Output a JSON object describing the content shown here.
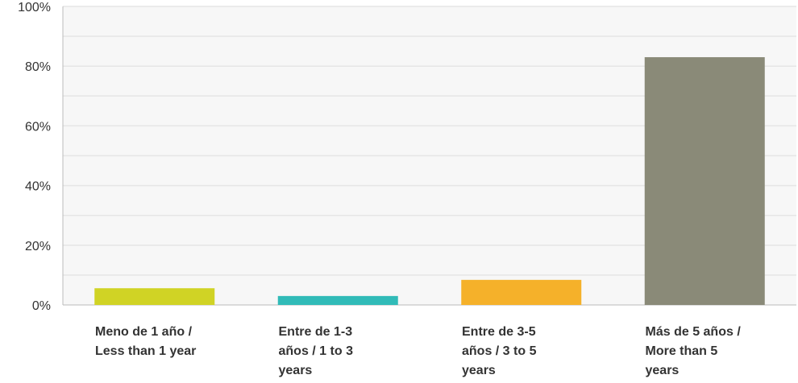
{
  "chart_data": {
    "type": "bar",
    "categories": [
      "Meno de 1 año / Less than 1 year",
      "Entre de 1-3 años / 1 to 3 years",
      "Entre de 3-5 años / 3 to 5 years",
      "Más de 5 años / More than 5 years"
    ],
    "category_label_lines": [
      [
        "Meno de 1 año /",
        "Less than 1 year"
      ],
      [
        "Entre de 1-3",
        "años / 1 to 3",
        "years"
      ],
      [
        "Entre de 3-5",
        "años / 3 to 5",
        "years"
      ],
      [
        "Más de 5 años /",
        "More than 5",
        "years"
      ]
    ],
    "values": [
      5.6,
      3.0,
      8.4,
      83.0
    ],
    "colors": [
      "#d0d325",
      "#31bbb8",
      "#f5b12a",
      "#8a8a78"
    ],
    "ylim": [
      0,
      100
    ],
    "yticks": [
      0,
      20,
      40,
      60,
      80,
      100
    ],
    "ytick_labels": [
      "0%",
      "20%",
      "40%",
      "60%",
      "80%",
      "100%"
    ],
    "grid": true,
    "gridline_color": "#e6e6e6",
    "axis_color": "#bbbbbb",
    "title": "",
    "xlabel": "",
    "ylabel": ""
  }
}
